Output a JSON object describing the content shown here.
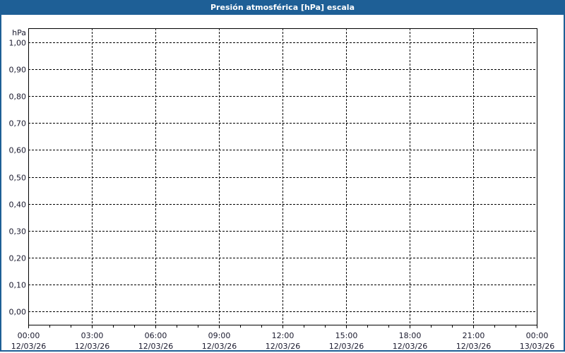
{
  "chart_data": {
    "type": "line",
    "title": "Presión atmosférica [hPa] escala",
    "ylabel": "hPa",
    "xlabel": "",
    "ylim": [
      0,
      1
    ],
    "y_ticks": [
      "0,00",
      "0,10",
      "0,20",
      "0,30",
      "0,40",
      "0,50",
      "0,60",
      "0,70",
      "0,80",
      "0,90",
      "1,00"
    ],
    "x_ticks": [
      {
        "time": "00:00",
        "date": "12/03/26"
      },
      {
        "time": "03:00",
        "date": "12/03/26"
      },
      {
        "time": "06:00",
        "date": "12/03/26"
      },
      {
        "time": "09:00",
        "date": "12/03/26"
      },
      {
        "time": "12:00",
        "date": "12/03/26"
      },
      {
        "time": "15:00",
        "date": "12/03/26"
      },
      {
        "time": "18:00",
        "date": "12/03/26"
      },
      {
        "time": "21:00",
        "date": "12/03/26"
      },
      {
        "time": "00:00",
        "date": "13/03/26"
      }
    ],
    "xlim": [
      "12/03/26 00:00",
      "13/03/26 00:00"
    ],
    "grid": true,
    "series": []
  },
  "colors": {
    "titlebar": "#1e5f96",
    "grid": "#000000"
  }
}
